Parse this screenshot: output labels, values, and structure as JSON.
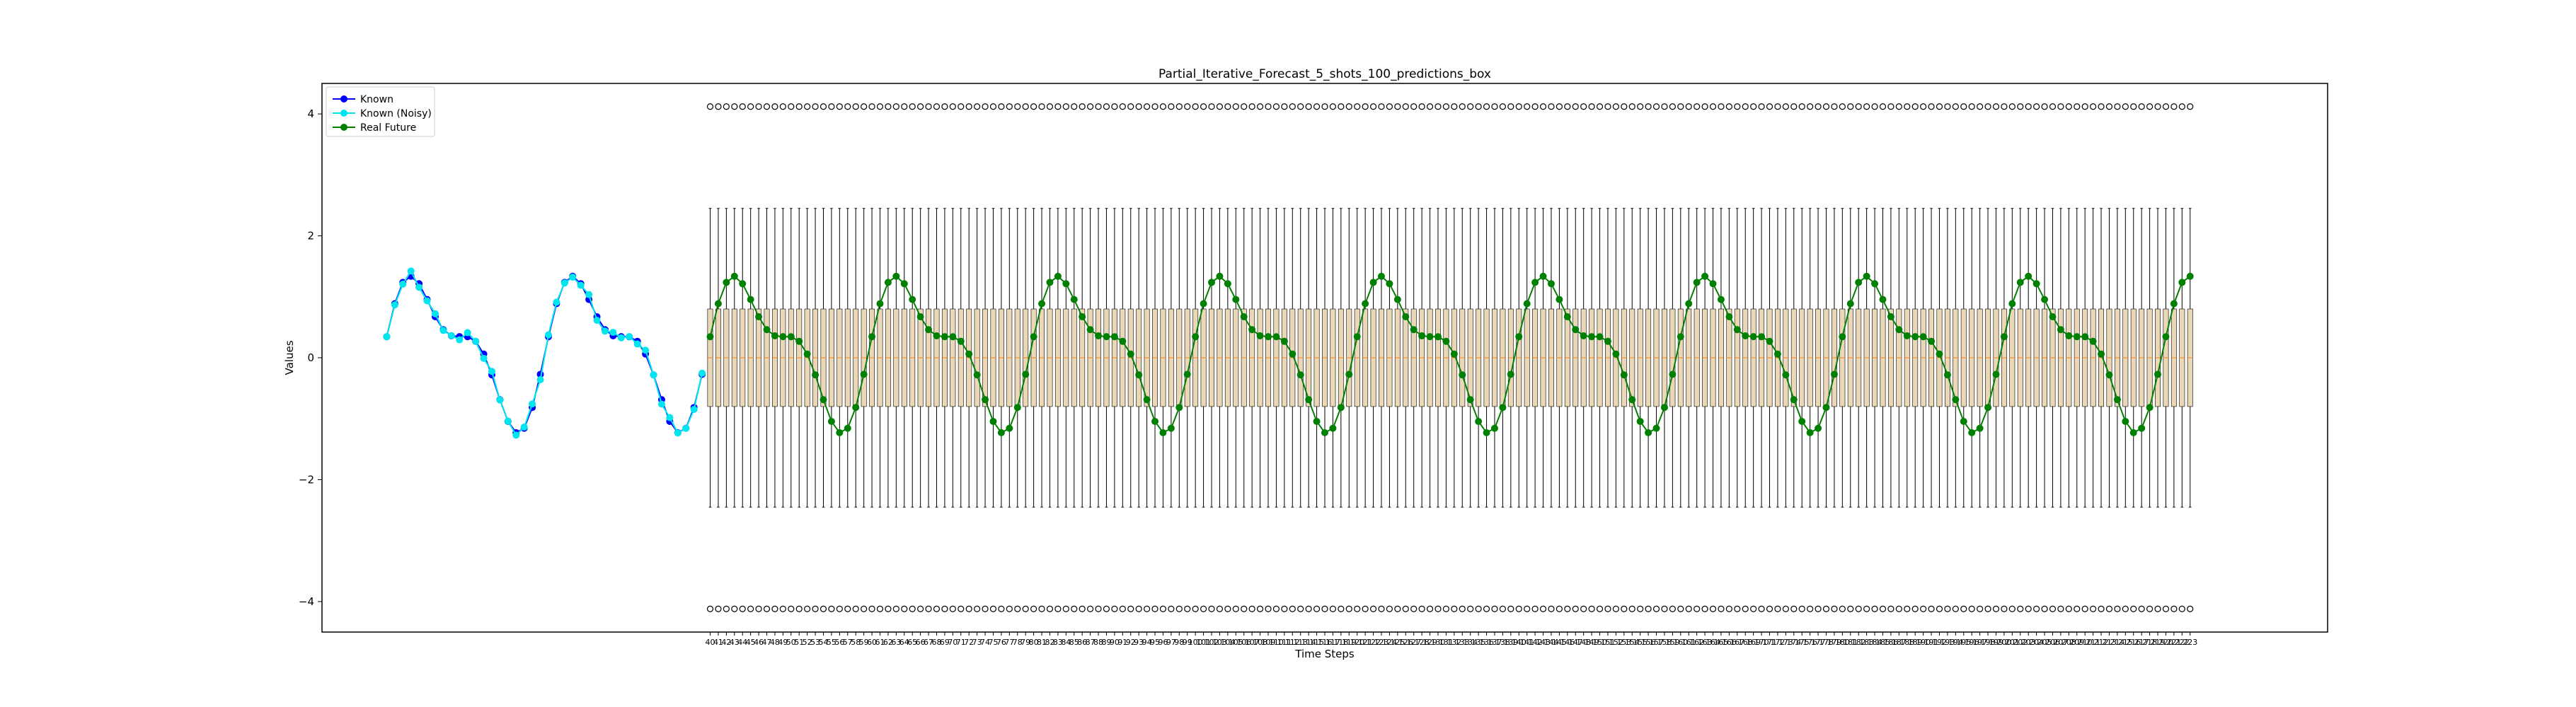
{
  "chart_data": {
    "type": "line",
    "title": "Partial_Iterative_Forecast_5_shots_100_predictions_box",
    "xlabel": "Time Steps",
    "ylabel": "Values",
    "ylim": [
      -4.5,
      4.5
    ],
    "y_ticks": [
      -4,
      -2,
      0,
      2,
      4
    ],
    "y_tick_labels": [
      "−4",
      "−2",
      "0",
      "2",
      "4"
    ],
    "xlim": [
      -8,
      240
    ],
    "grid": false,
    "legend": {
      "position": "top-left",
      "entries": [
        "Known",
        "Known (Noisy)",
        "Real Future"
      ]
    },
    "signal": {
      "formula_note": "",
      "period": 20,
      "known_range": [
        0,
        39
      ],
      "future_range": [
        40,
        223
      ]
    },
    "series": [
      {
        "name": "Known",
        "color": "#0000ff",
        "x_range": [
          0,
          39
        ]
      },
      {
        "name": "Known (Noisy)",
        "color": "#00e5ee",
        "x_range": [
          0,
          39
        ]
      },
      {
        "name": "Real Future",
        "color": "#008000",
        "x_range": [
          40,
          223
        ]
      }
    ],
    "boxplots": {
      "x_range": [
        40,
        223
      ],
      "box_q1": -0.8,
      "box_q3": 0.8,
      "whisker_low": -2.45,
      "whisker_high": 2.45,
      "outlier_low": -4.12,
      "outlier_high": 4.12,
      "box_fill": "#e9d7b6",
      "median_color": "#ff7f0e"
    },
    "x_tick_labels": [
      "40",
      "41",
      "42",
      "43",
      "44",
      "45",
      "46",
      "47",
      "48",
      "49",
      "50",
      "51",
      "52",
      "53",
      "54",
      "55",
      "56",
      "57",
      "58",
      "59",
      "60",
      "61",
      "62",
      "63",
      "64",
      "65",
      "66",
      "67",
      "68",
      "69",
      "70",
      "71",
      "72",
      "73",
      "74",
      "75",
      "76",
      "77",
      "78",
      "79",
      "80",
      "81",
      "82",
      "83",
      "84",
      "85",
      "86",
      "87",
      "88",
      "89",
      "90",
      "91",
      "92",
      "93",
      "94",
      "95",
      "96",
      "97",
      "98",
      "99",
      "100",
      "101",
      "102",
      "103",
      "104",
      "105",
      "106",
      "107",
      "108",
      "109",
      "110",
      "111",
      "112",
      "113",
      "114",
      "115",
      "116",
      "117",
      "118",
      "119",
      "120",
      "121",
      "122",
      "123",
      "124",
      "125",
      "126",
      "127",
      "128",
      "129",
      "130",
      "131",
      "132",
      "133",
      "134",
      "135",
      "136",
      "137",
      "138",
      "139",
      "140",
      "141",
      "142",
      "143",
      "144",
      "145",
      "146",
      "147",
      "148",
      "149",
      "150",
      "151",
      "152",
      "153",
      "154",
      "155",
      "156",
      "157",
      "158",
      "159",
      "160",
      "161",
      "162",
      "163",
      "164",
      "165",
      "166",
      "167",
      "168",
      "169",
      "170",
      "171",
      "172",
      "173",
      "174",
      "175",
      "176",
      "177",
      "178",
      "179",
      "180",
      "181",
      "182",
      "183",
      "184",
      "185",
      "186",
      "187",
      "188",
      "189",
      "190",
      "191",
      "192",
      "193",
      "194",
      "195",
      "196",
      "197",
      "198",
      "199",
      "200",
      "201",
      "202",
      "203",
      "204",
      "205",
      "206",
      "207",
      "208",
      "209",
      "210",
      "211",
      "212",
      "213",
      "214",
      "215",
      "216",
      "217",
      "218",
      "219",
      "220",
      "221",
      "222",
      "223"
    ]
  }
}
